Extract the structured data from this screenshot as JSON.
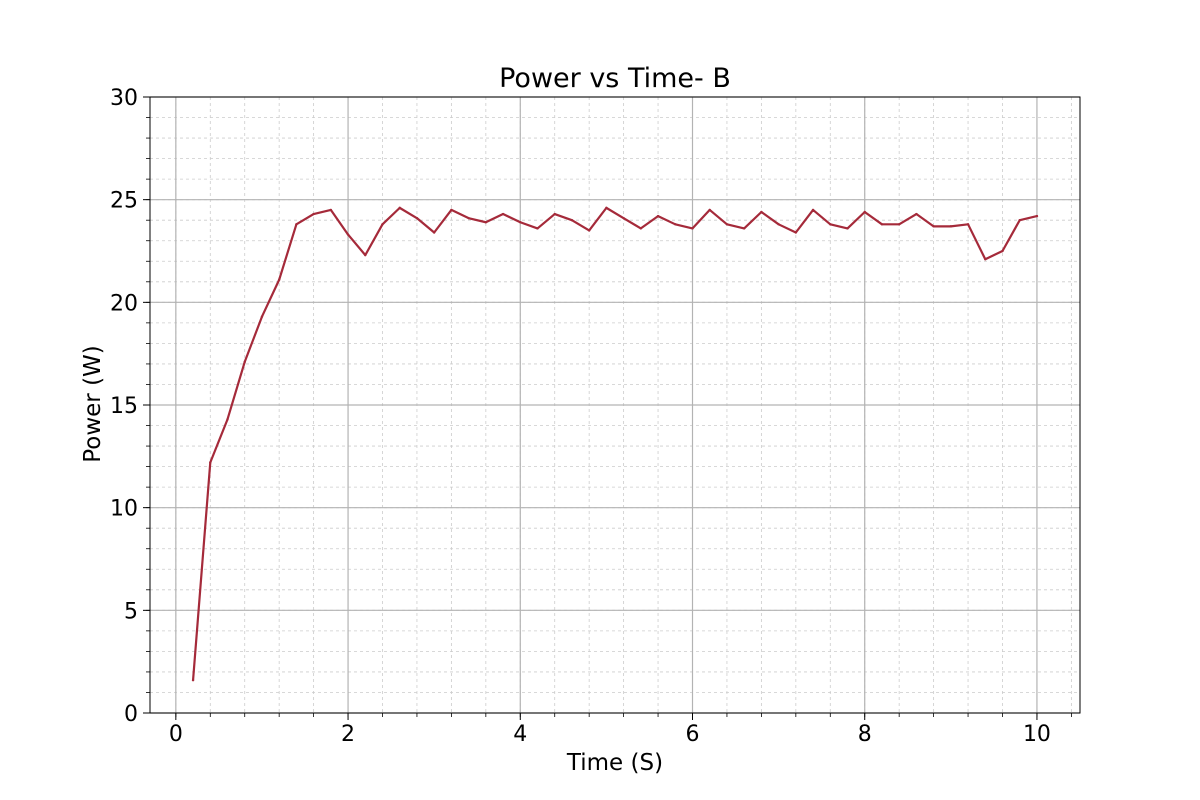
{
  "chart_data": {
    "type": "line",
    "title": "Power vs Time- B",
    "xlabel": "Time (S)",
    "ylabel": "Power (W)",
    "xlim": [
      -0.3,
      10.5
    ],
    "ylim": [
      0,
      30
    ],
    "xticks": [
      0,
      2,
      4,
      6,
      8,
      10
    ],
    "yticks": [
      0,
      5,
      10,
      15,
      20,
      25,
      30
    ],
    "xtick_labels": [
      "0",
      "2",
      "4",
      "6",
      "8",
      "10"
    ],
    "ytick_labels": [
      "0",
      "5",
      "10",
      "15",
      "20",
      "25",
      "30"
    ],
    "x_minor_step": 0.4,
    "y_minor_step": 1,
    "grid": true,
    "legend": "none",
    "line_color": "#a52a3a",
    "series": [
      {
        "x": [
          0.2,
          0.4,
          0.6,
          0.8,
          1.0,
          1.2,
          1.4,
          1.6,
          1.8,
          2.0,
          2.2,
          2.4,
          2.6,
          2.8,
          3.0,
          3.2,
          3.4,
          3.6,
          3.8,
          4.0,
          4.2,
          4.4,
          4.6,
          4.8,
          5.0,
          5.2,
          5.4,
          5.6,
          5.8,
          6.0,
          6.2,
          6.4,
          6.6,
          6.8,
          7.0,
          7.2,
          7.4,
          7.6,
          7.8,
          8.0,
          8.2,
          8.4,
          8.6,
          8.8,
          9.0,
          9.2,
          9.4,
          9.6,
          9.8,
          10.0
        ],
        "values": [
          1.6,
          12.2,
          14.3,
          17.1,
          19.3,
          21.1,
          23.8,
          24.3,
          24.5,
          23.3,
          22.3,
          23.8,
          24.6,
          24.1,
          23.4,
          24.5,
          24.1,
          23.9,
          24.3,
          23.9,
          23.6,
          24.3,
          24.0,
          23.5,
          24.6,
          24.1,
          23.6,
          24.2,
          23.8,
          23.6,
          24.5,
          23.8,
          23.6,
          24.4,
          23.8,
          23.4,
          24.5,
          23.8,
          23.6,
          24.4,
          23.8,
          23.8,
          24.3,
          23.7,
          23.7,
          23.8,
          22.1,
          22.5,
          24.0,
          24.2
        ]
      }
    ]
  }
}
